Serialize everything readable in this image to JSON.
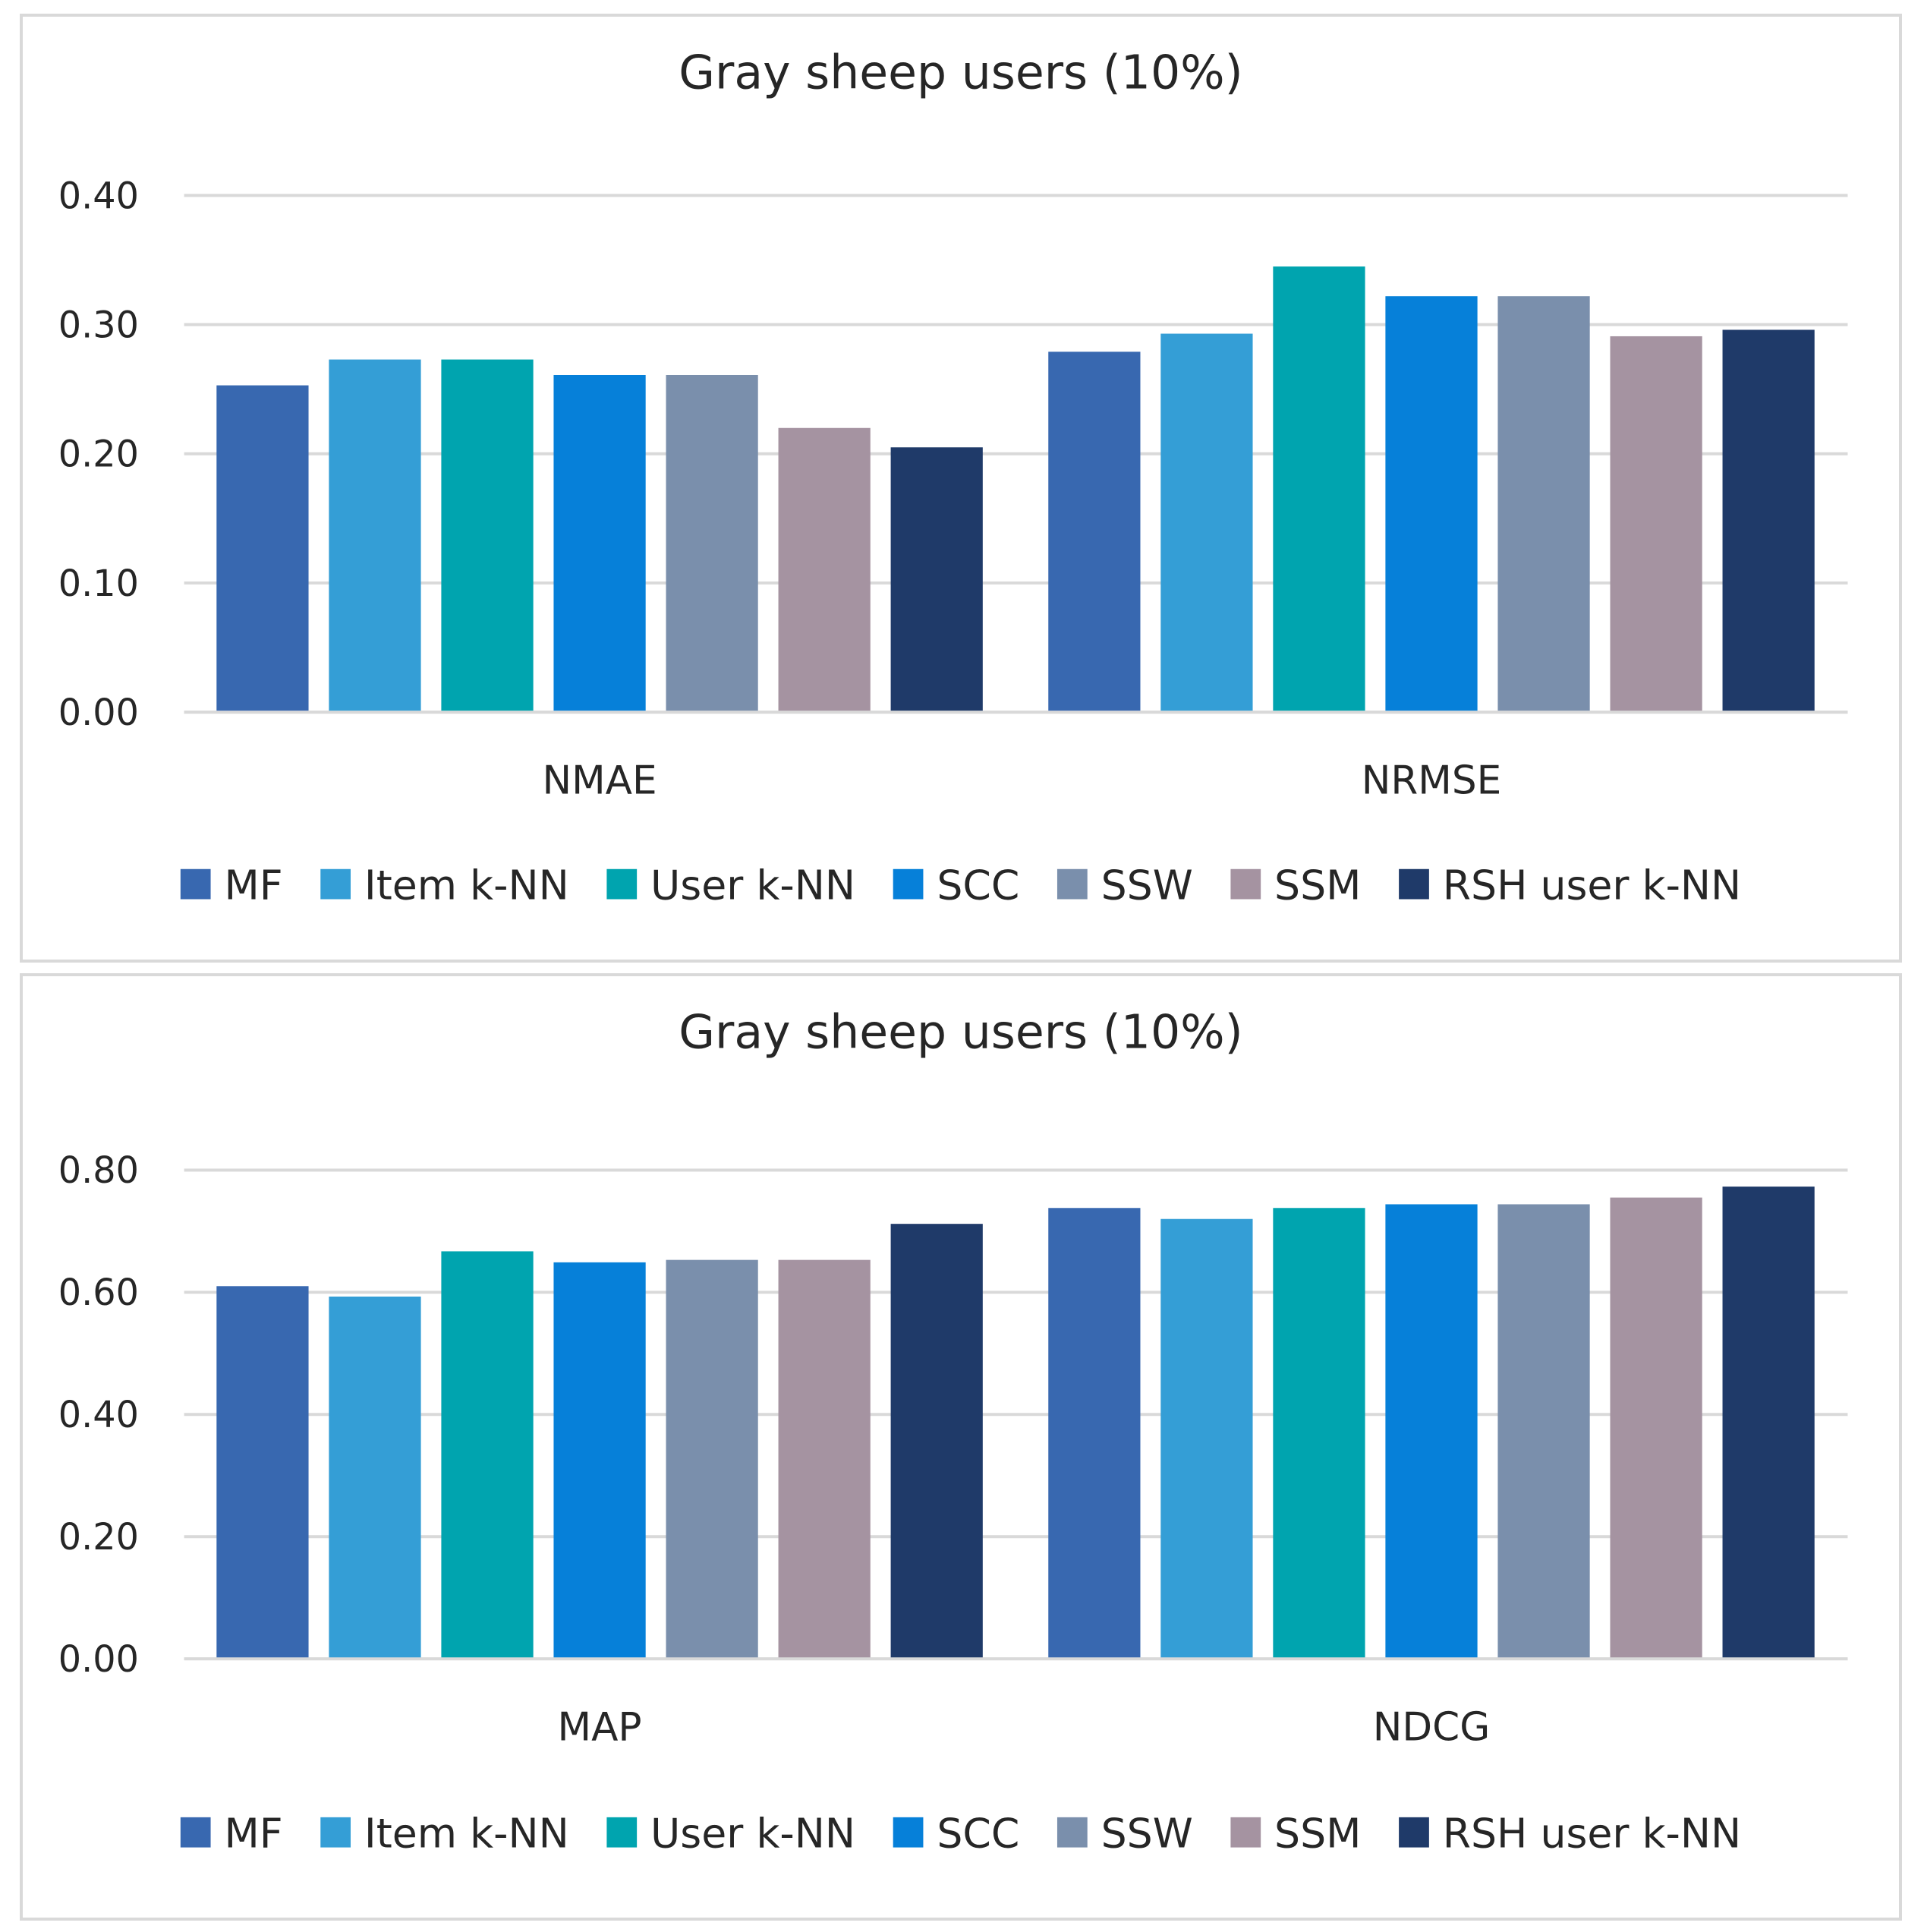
{
  "colors": {
    "MF": "#3868b0",
    "Item k-NN": "#349ed6",
    "User k-NN": "#00a4af",
    "SCC": "#0680d9",
    "SSW": "#7a8fac",
    "SSM": "#a593a1",
    "RSH user k-NN": "#1f3a69"
  },
  "chart_data": [
    {
      "type": "bar",
      "title": "Gray sheep users (10%)",
      "xlabel": "",
      "ylabel": "",
      "categories": [
        "NMAE",
        "NRMSE"
      ],
      "ylim": [
        0,
        0.4
      ],
      "yticks": [
        "0.00",
        "0.10",
        "0.20",
        "0.30",
        "0.40"
      ],
      "yticks_values": [
        0,
        0.1,
        0.2,
        0.3,
        0.4
      ],
      "grid": true,
      "legend_position": "bottom",
      "series": [
        {
          "name": "MF",
          "values": [
            0.253,
            0.279
          ]
        },
        {
          "name": "Item k-NN",
          "values": [
            0.273,
            0.293
          ]
        },
        {
          "name": "User k-NN",
          "values": [
            0.273,
            0.345
          ]
        },
        {
          "name": "SCC",
          "values": [
            0.261,
            0.322
          ]
        },
        {
          "name": "SSW",
          "values": [
            0.261,
            0.322
          ]
        },
        {
          "name": "SSM",
          "values": [
            0.22,
            0.291
          ]
        },
        {
          "name": "RSH user k-NN",
          "values": [
            0.205,
            0.296
          ]
        }
      ]
    },
    {
      "type": "bar",
      "title": "Gray sheep users (10%)",
      "xlabel": "",
      "ylabel": "",
      "categories": [
        "MAP",
        "NDCG"
      ],
      "ylim": [
        0,
        0.8
      ],
      "yticks": [
        "0.00",
        "0.20",
        "0.40",
        "0.60",
        "0.80"
      ],
      "yticks_values": [
        0,
        0.2,
        0.4,
        0.6,
        0.8
      ],
      "grid": true,
      "legend_position": "bottom",
      "series": [
        {
          "name": "MF",
          "values": [
            0.61,
            0.738
          ]
        },
        {
          "name": "Item k-NN",
          "values": [
            0.593,
            0.72
          ]
        },
        {
          "name": "User k-NN",
          "values": [
            0.667,
            0.738
          ]
        },
        {
          "name": "SCC",
          "values": [
            0.649,
            0.744
          ]
        },
        {
          "name": "SSW",
          "values": [
            0.653,
            0.744
          ]
        },
        {
          "name": "SSM",
          "values": [
            0.653,
            0.755
          ]
        },
        {
          "name": "RSH user k-NN",
          "values": [
            0.712,
            0.773
          ]
        }
      ]
    }
  ]
}
